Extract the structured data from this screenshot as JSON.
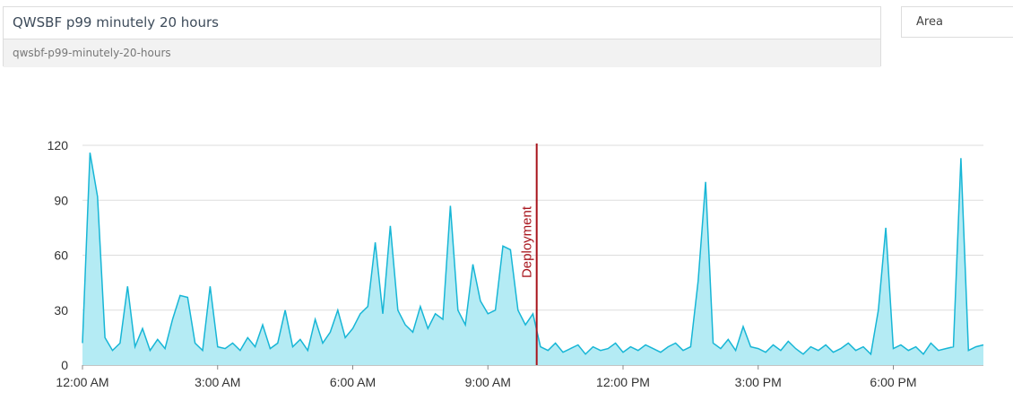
{
  "header": {
    "title": "QWSBF p99 minutely 20 hours",
    "slug": "qwsbf-p99-minutely-20-hours"
  },
  "dropdown": {
    "value": "Area"
  },
  "chart_data": {
    "type": "area",
    "x": [
      0,
      10,
      20,
      30,
      40,
      50,
      60,
      70,
      80,
      90,
      100,
      110,
      120,
      130,
      140,
      150,
      160,
      170,
      180,
      190,
      200,
      210,
      220,
      230,
      240,
      250,
      260,
      270,
      280,
      290,
      300,
      310,
      320,
      330,
      340,
      350,
      360,
      370,
      380,
      390,
      400,
      410,
      420,
      430,
      440,
      450,
      460,
      470,
      480,
      490,
      500,
      510,
      520,
      530,
      540,
      550,
      560,
      570,
      580,
      590,
      600,
      610,
      620,
      630,
      640,
      650,
      660,
      670,
      680,
      690,
      700,
      710,
      720,
      730,
      740,
      750,
      760,
      770,
      780,
      790,
      800,
      810,
      820,
      830,
      840,
      850,
      860,
      870,
      880,
      890,
      900,
      910,
      920,
      930,
      940,
      950,
      960,
      970,
      980,
      990,
      1000,
      1010,
      1020,
      1030,
      1040,
      1050,
      1060,
      1070,
      1080,
      1090,
      1100,
      1110,
      1120,
      1130,
      1140,
      1150,
      1160,
      1170,
      1180,
      1190,
      1200
    ],
    "series": [
      {
        "color": "#17b6d6",
        "fill": "#b4ebf4",
        "values": [
          12,
          116,
          92,
          15,
          8,
          12,
          43,
          10,
          20,
          8,
          14,
          9,
          25,
          38,
          37,
          12,
          8,
          43,
          10,
          9,
          12,
          8,
          15,
          10,
          22,
          9,
          12,
          30,
          10,
          14,
          8,
          25,
          12,
          18,
          30,
          15,
          20,
          28,
          32,
          67,
          28,
          76,
          30,
          22,
          18,
          32,
          20,
          28,
          25,
          87,
          30,
          22,
          55,
          35,
          28,
          30,
          65,
          63,
          30,
          22,
          28,
          10,
          8,
          12,
          7,
          9,
          11,
          6,
          10,
          8,
          9,
          12,
          7,
          10,
          8,
          11,
          9,
          7,
          10,
          12,
          8,
          10,
          46,
          100,
          12,
          9,
          14,
          8,
          21,
          10,
          9,
          7,
          11,
          8,
          13,
          9,
          6,
          10,
          8,
          11,
          7,
          9,
          12,
          8,
          10,
          6,
          30,
          75,
          9,
          11,
          8,
          10,
          6,
          12,
          8,
          9,
          10,
          113,
          8,
          10,
          11
        ]
      }
    ],
    "xlim": [
      0,
      1200
    ],
    "xticks": [
      {
        "value": 0,
        "label": "12:00 AM"
      },
      {
        "value": 180,
        "label": "3:00 AM"
      },
      {
        "value": 360,
        "label": "6:00 AM"
      },
      {
        "value": 540,
        "label": "9:00 AM"
      },
      {
        "value": 720,
        "label": "12:00 PM"
      },
      {
        "value": 900,
        "label": "3:00 PM"
      },
      {
        "value": 1080,
        "label": "6:00 PM"
      }
    ],
    "ylim": [
      0,
      120
    ],
    "yticks": [
      0,
      30,
      60,
      90,
      120
    ],
    "grid": true,
    "annotations": [
      {
        "x": 605,
        "label": "Deployment",
        "color": "#a8141c"
      }
    ]
  }
}
